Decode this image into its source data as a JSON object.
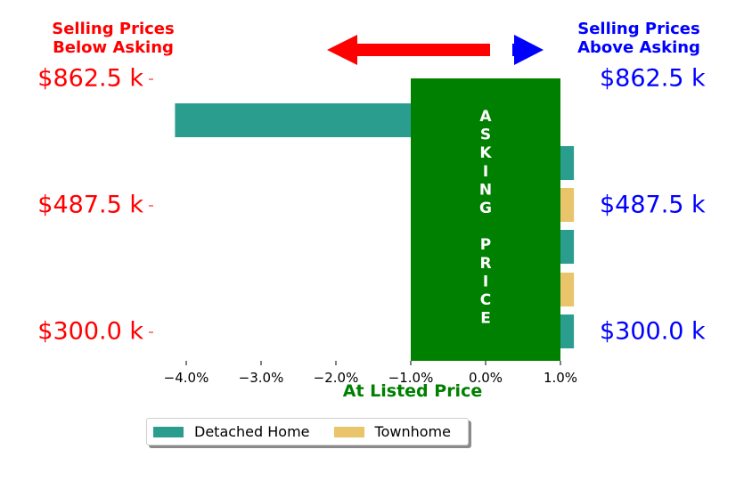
{
  "chart_data": {
    "type": "bar",
    "orientation": "horizontal",
    "header_left": [
      "Selling Prices",
      "Below Asking"
    ],
    "header_right": [
      "Selling Prices",
      "Above Asking"
    ],
    "band_label_vertical": [
      "A",
      "S",
      "K",
      "I",
      "N",
      "G",
      "",
      "P",
      "R",
      "I",
      "C",
      "E"
    ],
    "xlabel": "At Listed Price",
    "xticks": [
      "−4.0%",
      "−3.0%",
      "−2.0%",
      "−1.0%",
      "0.0%",
      "1.0%"
    ],
    "xtick_values": [
      -4,
      -3,
      -2,
      -1,
      0,
      1
    ],
    "xlim": [
      -4.35,
      1.5
    ],
    "asking_band": [
      -1.0,
      1.0
    ],
    "yticks_left": [
      "$862.5 k",
      "$487.5 k",
      "$300.0 k"
    ],
    "yticks_right": [
      "$862.5 k",
      "$487.5 k",
      "$300.0 k"
    ],
    "bars": [
      {
        "series": "Detached Home",
        "value": -4.15
      },
      {
        "series": "Detached Home",
        "value": 1.18
      },
      {
        "series": "Townhome",
        "value": 1.18
      },
      {
        "series": "Detached Home",
        "value": 1.18
      },
      {
        "series": "Townhome",
        "value": 1.18
      },
      {
        "series": "Detached Home",
        "value": 1.18
      }
    ],
    "legend": [
      {
        "name": "Detached Home",
        "color": "#2a9d8f"
      },
      {
        "name": "Townhome",
        "color": "#e9c46a"
      }
    ],
    "legend_position": "bottom",
    "colors": {
      "left_text": "#ff0000",
      "right_text": "#0000ff",
      "band": "#008000",
      "band_text": "#ffffff",
      "left_arrow": "#ff0000",
      "right_arrow": "#0000ff"
    }
  }
}
